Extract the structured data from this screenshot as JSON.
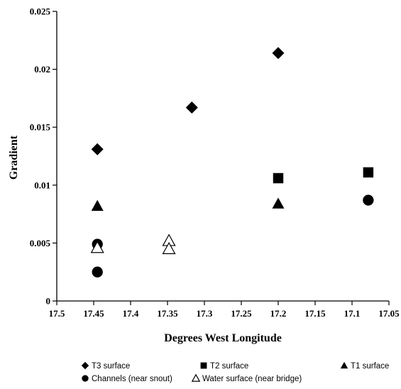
{
  "chart_data": {
    "type": "scatter",
    "title": "",
    "xlabel": "Degrees West Longitude",
    "ylabel": "Gradient",
    "xlim": [
      17.5,
      17.05
    ],
    "x_reversed": true,
    "ylim": [
      0,
      0.025
    ],
    "grid": false,
    "legend_position": "bottom",
    "x_ticks": [
      "17.5",
      "17.45",
      "17.4",
      "17.35",
      "17.3",
      "17.25",
      "17.2",
      "17.15",
      "17.1",
      "17.05"
    ],
    "y_ticks": [
      "0",
      "0.005",
      "0.01",
      "0.015",
      "0.02",
      "0.025"
    ],
    "series": [
      {
        "name": "T3 surface",
        "marker": "diamond-filled",
        "points": [
          {
            "x": 17.445,
            "y": 0.0131
          },
          {
            "x": 17.317,
            "y": 0.0167
          },
          {
            "x": 17.2,
            "y": 0.0214
          }
        ]
      },
      {
        "name": "T2 surface",
        "marker": "square-filled",
        "points": [
          {
            "x": 17.2,
            "y": 0.0106
          },
          {
            "x": 17.078,
            "y": 0.0111
          }
        ]
      },
      {
        "name": "T1 surface",
        "marker": "triangle-filled",
        "points": [
          {
            "x": 17.445,
            "y": 0.0082
          },
          {
            "x": 17.2,
            "y": 0.0084
          }
        ]
      },
      {
        "name": "Channels (near snout)",
        "marker": "circle-filled",
        "points": [
          {
            "x": 17.445,
            "y": 0.0049
          },
          {
            "x": 17.445,
            "y": 0.0025
          },
          {
            "x": 17.078,
            "y": 0.0087
          }
        ]
      },
      {
        "name": "Water surface (near bridge)",
        "marker": "triangle-open",
        "points": [
          {
            "x": 17.445,
            "y": 0.0046
          },
          {
            "x": 17.348,
            "y": 0.0052
          },
          {
            "x": 17.348,
            "y": 0.0045
          }
        ]
      }
    ]
  },
  "colors": {
    "marker": "#000000",
    "background": "#ffffff"
  }
}
